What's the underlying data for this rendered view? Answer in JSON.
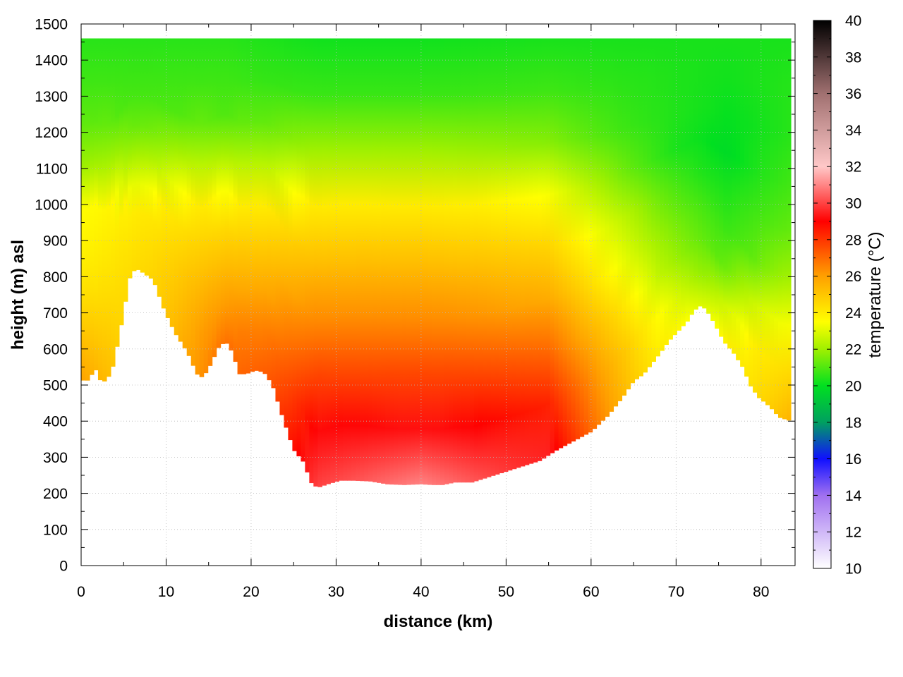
{
  "chart_data": {
    "type": "heatmap",
    "title": "",
    "xlabel": "distance (km)",
    "ylabel": "height (m) asl",
    "xlim": [
      0,
      84
    ],
    "ylim": [
      0,
      1500
    ],
    "x_ticks": [
      0,
      10,
      20,
      30,
      40,
      50,
      60,
      70,
      80
    ],
    "y_ticks": [
      0,
      100,
      200,
      300,
      400,
      500,
      600,
      700,
      800,
      900,
      1000,
      1100,
      1200,
      1300,
      1400,
      1500
    ],
    "grid": true,
    "colorbar": {
      "label": "temperature (°C)",
      "range": [
        10,
        40
      ],
      "ticks": [
        10,
        12,
        14,
        16,
        18,
        20,
        22,
        24,
        26,
        28,
        30,
        32,
        34,
        36,
        38,
        40
      ],
      "stops": [
        {
          "value": 10,
          "color": "#ffffff"
        },
        {
          "value": 14,
          "color": "#a070f0"
        },
        {
          "value": 16,
          "color": "#1010ff"
        },
        {
          "value": 18,
          "color": "#00a060"
        },
        {
          "value": 20,
          "color": "#00e020"
        },
        {
          "value": 22,
          "color": "#a0f000"
        },
        {
          "value": 23.5,
          "color": "#ffff00"
        },
        {
          "value": 26,
          "color": "#ffa000"
        },
        {
          "value": 29,
          "color": "#ff0000"
        },
        {
          "value": 32,
          "color": "#ffc8c8"
        },
        {
          "value": 36,
          "color": "#a07070"
        },
        {
          "value": 40,
          "color": "#000000"
        }
      ]
    },
    "terrain": {
      "x_km": [
        0,
        0.5,
        1,
        1.7,
        2.3,
        3,
        3.8,
        4.8,
        5.7,
        6.4,
        7.3,
        8.5,
        9.8,
        11,
        12.5,
        13.6,
        14.3,
        15,
        16.2,
        17,
        17.8,
        18.6,
        19.4,
        20.5,
        21.5,
        22.5,
        23.7,
        25,
        26.2,
        27,
        27.8,
        29,
        30.5,
        32,
        34,
        36,
        38,
        40,
        41.3,
        42.5,
        44,
        46,
        48,
        50,
        52,
        54,
        56,
        58,
        60,
        62,
        63.7,
        65,
        66.2,
        67.2,
        68.2,
        69.1,
        70.3,
        71.3,
        72.1,
        72.8,
        73.5,
        74.5,
        75.6,
        76.7,
        77.8,
        78.8,
        79.7,
        80.6,
        81.4,
        82.1,
        83.5
      ],
      "height_m": [
        520,
        505,
        520,
        543,
        510,
        510,
        555,
        675,
        795,
        823,
        810,
        790,
        705,
        645,
        590,
        530,
        520,
        545,
        605,
        620,
        590,
        530,
        530,
        540,
        535,
        500,
        410,
        320,
        285,
        230,
        215,
        225,
        235,
        235,
        233,
        225,
        223,
        225,
        223,
        223,
        230,
        230,
        245,
        260,
        275,
        290,
        320,
        345,
        370,
        415,
        465,
        510,
        530,
        560,
        590,
        620,
        650,
        675,
        705,
        718,
        710,
        670,
        620,
        590,
        550,
        495,
        465,
        448,
        430,
        410,
        400
      ]
    },
    "temperature_profiles": [
      {
        "x_km": 0,
        "points": [
          [
            500,
            26
          ],
          [
            650,
            25
          ],
          [
            800,
            24
          ],
          [
            1000,
            23.5
          ],
          [
            1100,
            22
          ],
          [
            1250,
            21
          ],
          [
            1450,
            20.5
          ]
        ]
      },
      {
        "x_km": 7,
        "points": [
          [
            820,
            24.5
          ],
          [
            1000,
            24
          ],
          [
            1100,
            22.5
          ],
          [
            1250,
            21
          ],
          [
            1450,
            20.5
          ]
        ]
      },
      {
        "x_km": 17,
        "points": [
          [
            600,
            27
          ],
          [
            800,
            25.5
          ],
          [
            1000,
            24
          ],
          [
            1100,
            22.5
          ],
          [
            1250,
            21
          ],
          [
            1450,
            20.5
          ]
        ]
      },
      {
        "x_km": 28,
        "points": [
          [
            220,
            30
          ],
          [
            400,
            29
          ],
          [
            600,
            27
          ],
          [
            800,
            25.5
          ],
          [
            1000,
            24
          ],
          [
            1100,
            22.5
          ],
          [
            1250,
            21
          ],
          [
            1400,
            20.2
          ]
        ]
      },
      {
        "x_km": 40,
        "points": [
          [
            220,
            31
          ],
          [
            400,
            29
          ],
          [
            600,
            27
          ],
          [
            800,
            25.5
          ],
          [
            1000,
            24
          ],
          [
            1100,
            22.5
          ],
          [
            1250,
            21
          ],
          [
            1400,
            20.2
          ]
        ]
      },
      {
        "x_km": 55,
        "points": [
          [
            300,
            29.5
          ],
          [
            500,
            28
          ],
          [
            700,
            26
          ],
          [
            900,
            24.5
          ],
          [
            1000,
            23.8
          ],
          [
            1100,
            22.3
          ],
          [
            1250,
            21
          ],
          [
            1450,
            20.3
          ]
        ]
      },
      {
        "x_km": 68,
        "points": [
          [
            600,
            24
          ],
          [
            700,
            23.5
          ],
          [
            800,
            22.5
          ],
          [
            1000,
            21.5
          ],
          [
            1150,
            20.5
          ],
          [
            1300,
            20.5
          ],
          [
            1450,
            20.3
          ]
        ]
      },
      {
        "x_km": 76,
        "points": [
          [
            600,
            24
          ],
          [
            700,
            23
          ],
          [
            850,
            21
          ],
          [
            1000,
            20.5
          ],
          [
            1150,
            19.8
          ],
          [
            1300,
            20.2
          ],
          [
            1450,
            20.3
          ]
        ]
      },
      {
        "x_km": 83.5,
        "points": [
          [
            400,
            25.5
          ],
          [
            600,
            24
          ],
          [
            700,
            23
          ],
          [
            850,
            21.5
          ],
          [
            1000,
            21
          ],
          [
            1150,
            20.5
          ],
          [
            1300,
            20.5
          ],
          [
            1450,
            20.3
          ]
        ]
      }
    ]
  }
}
